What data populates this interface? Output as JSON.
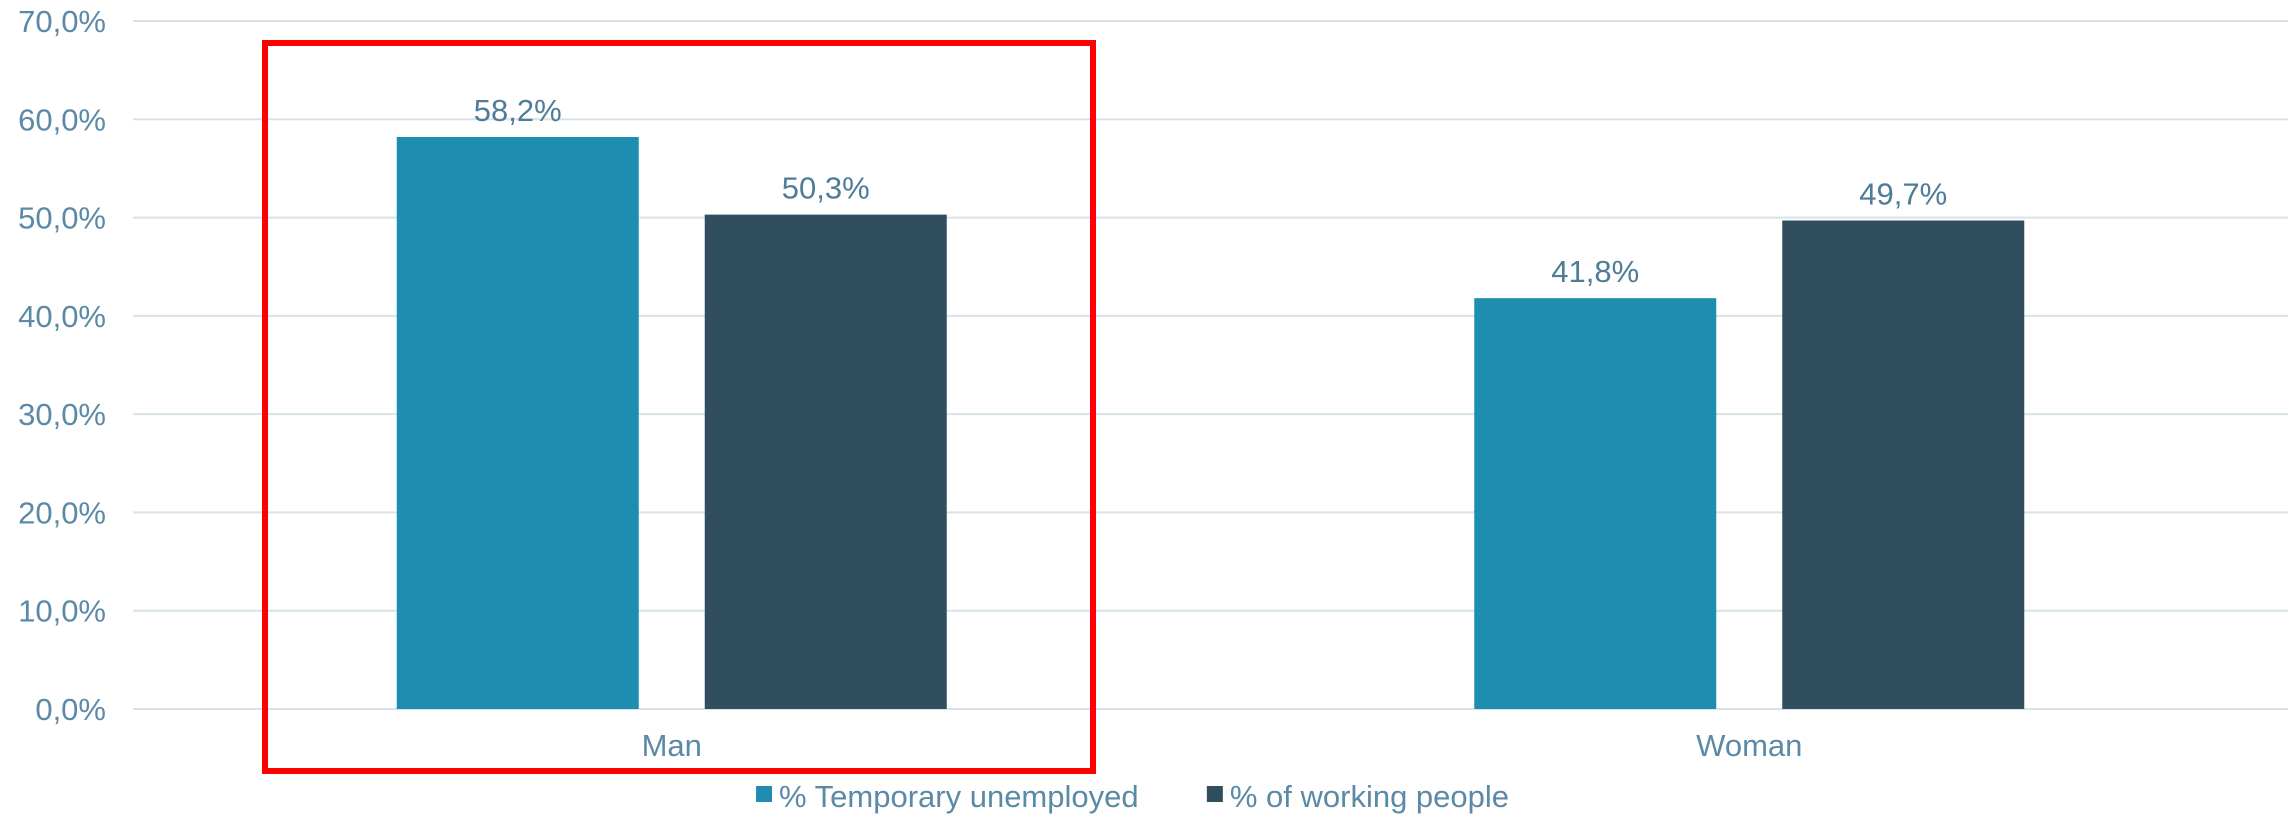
{
  "chart_data": {
    "type": "bar",
    "categories": [
      "Man",
      "Woman"
    ],
    "series": [
      {
        "name": "% Temporary unemployed",
        "values": [
          58.2,
          41.8
        ],
        "labels": [
          "58,2%",
          "41,8%"
        ],
        "color": "#1f8db0"
      },
      {
        "name": "% of working people",
        "values": [
          50.3,
          49.7
        ],
        "labels": [
          "50,3%",
          "49,7%"
        ],
        "color": "#304e5e"
      }
    ],
    "ylim": [
      0,
      70
    ],
    "yticks": [
      0,
      10,
      20,
      30,
      40,
      50,
      60,
      70
    ],
    "ytick_labels": [
      "0,0%",
      "10,0%",
      "20,0%",
      "30,0%",
      "40,0%",
      "50,0%",
      "60,0%",
      "70,0%"
    ],
    "title": "",
    "xlabel": "",
    "ylabel": "",
    "grid": true,
    "legend_position": "bottom",
    "highlight": {
      "category": "Man",
      "color": "#ff0000"
    },
    "colors": {
      "grid": "#d6e3ea",
      "axis_text": "#5b8aa6",
      "data_label": "#4f7c96"
    }
  }
}
